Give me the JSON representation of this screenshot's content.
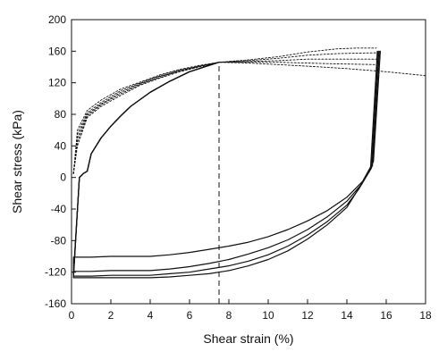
{
  "chart_data": {
    "type": "line",
    "xlabel": "Shear strain (%)",
    "ylabel": "Shear stress (kPa)",
    "xlim": [
      0,
      18
    ],
    "ylim": [
      -160,
      200
    ],
    "x_ticks": [
      "0",
      "2",
      "4",
      "6",
      "8",
      "10",
      "12",
      "14",
      "16",
      "18"
    ],
    "y_ticks": [
      "200",
      "160",
      "120",
      "80",
      "40",
      "0",
      "-40",
      "-80",
      "-120",
      "-160"
    ],
    "grid": false,
    "legend": "none",
    "series": [
      {
        "style": "dashed",
        "points": [
          [
            0.1,
            5
          ],
          [
            0.3,
            60
          ],
          [
            0.8,
            85
          ],
          [
            1.5,
            98
          ],
          [
            2.5,
            112
          ],
          [
            3.5,
            121
          ],
          [
            4.5,
            130
          ],
          [
            5.5,
            137
          ],
          [
            6.5,
            142
          ],
          [
            7.5,
            146
          ],
          [
            9,
            149
          ],
          [
            10.5,
            153
          ],
          [
            12,
            159
          ],
          [
            13.5,
            163
          ],
          [
            14.5,
            164
          ],
          [
            15.5,
            164
          ]
        ]
      },
      {
        "style": "dashed",
        "points": [
          [
            0.1,
            5
          ],
          [
            0.3,
            55
          ],
          [
            0.8,
            82
          ],
          [
            1.5,
            95
          ],
          [
            2.5,
            110
          ],
          [
            3.5,
            120
          ],
          [
            4.5,
            129
          ],
          [
            5.5,
            136
          ],
          [
            6.5,
            141
          ],
          [
            7.5,
            146
          ],
          [
            9,
            148
          ],
          [
            10.5,
            151
          ],
          [
            12,
            155
          ],
          [
            13.5,
            157
          ],
          [
            15.5,
            158
          ]
        ]
      },
      {
        "style": "dashed",
        "points": [
          [
            0.1,
            5
          ],
          [
            0.3,
            50
          ],
          [
            0.8,
            80
          ],
          [
            1.5,
            93
          ],
          [
            2.5,
            108
          ],
          [
            3.5,
            119
          ],
          [
            4.5,
            128
          ],
          [
            5.5,
            135
          ],
          [
            6.5,
            141
          ],
          [
            7.5,
            146
          ],
          [
            9,
            147
          ],
          [
            10.5,
            148
          ],
          [
            12,
            150
          ],
          [
            13.5,
            150
          ],
          [
            15.5,
            150
          ]
        ]
      },
      {
        "style": "dashed",
        "points": [
          [
            0.1,
            5
          ],
          [
            0.3,
            45
          ],
          [
            0.8,
            78
          ],
          [
            1.5,
            92
          ],
          [
            2.5,
            106
          ],
          [
            3.5,
            118
          ],
          [
            4.5,
            127
          ],
          [
            5.5,
            135
          ],
          [
            6.5,
            141
          ],
          [
            7.5,
            146
          ],
          [
            9,
            146
          ],
          [
            10.5,
            146
          ],
          [
            12,
            145
          ],
          [
            13.5,
            144
          ],
          [
            15.5,
            143
          ]
        ]
      },
      {
        "style": "dashed",
        "points": [
          [
            0.1,
            5
          ],
          [
            0.3,
            40
          ],
          [
            0.8,
            76
          ],
          [
            1.5,
            90
          ],
          [
            2.5,
            104
          ],
          [
            3.5,
            117
          ],
          [
            4.5,
            126
          ],
          [
            5.5,
            134
          ],
          [
            6.5,
            140
          ],
          [
            7.5,
            146
          ],
          [
            9,
            145
          ],
          [
            10.5,
            143
          ],
          [
            12,
            141
          ],
          [
            14,
            138
          ],
          [
            16,
            134
          ],
          [
            18,
            129
          ]
        ]
      },
      {
        "style": "solid",
        "points": [
          [
            15.7,
            160
          ],
          [
            15.35,
            20
          ],
          [
            14.8,
            -5
          ],
          [
            14,
            -25
          ],
          [
            13,
            -42
          ],
          [
            12,
            -55
          ],
          [
            11,
            -66
          ],
          [
            10,
            -75
          ],
          [
            9,
            -82
          ],
          [
            8,
            -87
          ],
          [
            7,
            -91
          ],
          [
            6,
            -95
          ],
          [
            5,
            -98
          ],
          [
            4,
            -100
          ],
          [
            3,
            -100
          ],
          [
            2,
            -100
          ],
          [
            1,
            -101
          ],
          [
            0.1,
            -101
          ],
          [
            0.1,
            -122
          ],
          [
            0.4,
            0
          ],
          [
            0.6,
            5
          ],
          [
            0.8,
            8
          ],
          [
            1.0,
            30
          ],
          [
            1.5,
            50
          ],
          [
            2,
            65
          ],
          [
            2.5,
            78
          ],
          [
            3,
            90
          ],
          [
            4,
            108
          ],
          [
            5,
            122
          ],
          [
            6,
            134
          ],
          [
            7,
            142
          ],
          [
            7.5,
            146
          ]
        ]
      },
      {
        "style": "solid",
        "points": [
          [
            15.65,
            160
          ],
          [
            15.3,
            15
          ],
          [
            14.7,
            -10
          ],
          [
            14,
            -30
          ],
          [
            13,
            -50
          ],
          [
            12,
            -66
          ],
          [
            11,
            -79
          ],
          [
            10,
            -89
          ],
          [
            9,
            -97
          ],
          [
            8,
            -104
          ],
          [
            7,
            -109
          ],
          [
            6,
            -113
          ],
          [
            5,
            -116
          ],
          [
            4,
            -118
          ],
          [
            3,
            -118
          ],
          [
            2,
            -118
          ],
          [
            1,
            -119
          ],
          [
            0.1,
            -119
          ],
          [
            0.1,
            -122
          ],
          [
            0.4,
            0
          ],
          [
            0.6,
            5
          ],
          [
            0.8,
            8
          ],
          [
            1.0,
            30
          ],
          [
            1.5,
            50
          ],
          [
            2,
            65
          ],
          [
            2.5,
            78
          ],
          [
            3,
            90
          ],
          [
            4,
            108
          ],
          [
            5,
            122
          ],
          [
            6,
            134
          ],
          [
            7,
            142
          ],
          [
            7.5,
            146
          ]
        ]
      },
      {
        "style": "solid",
        "points": [
          [
            15.6,
            160
          ],
          [
            15.25,
            12
          ],
          [
            14.6,
            -15
          ],
          [
            14,
            -35
          ],
          [
            13,
            -56
          ],
          [
            12,
            -73
          ],
          [
            11,
            -87
          ],
          [
            10,
            -98
          ],
          [
            9,
            -106
          ],
          [
            8,
            -112
          ],
          [
            7,
            -116
          ],
          [
            6,
            -120
          ],
          [
            5,
            -122
          ],
          [
            4,
            -124
          ],
          [
            3,
            -124
          ],
          [
            2,
            -124
          ],
          [
            1,
            -125
          ],
          [
            0.1,
            -125
          ],
          [
            0.4,
            0
          ],
          [
            0.6,
            5
          ],
          [
            0.8,
            8
          ],
          [
            1.0,
            30
          ],
          [
            1.5,
            50
          ],
          [
            2,
            65
          ],
          [
            2.5,
            78
          ],
          [
            3,
            90
          ],
          [
            4,
            108
          ],
          [
            5,
            122
          ],
          [
            6,
            134
          ],
          [
            7,
            142
          ],
          [
            7.5,
            146
          ]
        ]
      },
      {
        "style": "solid",
        "points": [
          [
            15.55,
            160
          ],
          [
            15.2,
            10
          ],
          [
            14.5,
            -18
          ],
          [
            14,
            -38
          ],
          [
            13,
            -60
          ],
          [
            12,
            -78
          ],
          [
            11,
            -93
          ],
          [
            10,
            -104
          ],
          [
            9,
            -112
          ],
          [
            8,
            -118
          ],
          [
            7,
            -122
          ],
          [
            6,
            -124
          ],
          [
            5,
            -126
          ],
          [
            4,
            -127
          ],
          [
            3,
            -127
          ],
          [
            2,
            -127
          ],
          [
            1,
            -127
          ],
          [
            0.1,
            -127
          ],
          [
            0.4,
            0
          ],
          [
            0.6,
            5
          ],
          [
            0.8,
            8
          ],
          [
            1.0,
            30
          ],
          [
            1.5,
            50
          ],
          [
            2,
            65
          ],
          [
            2.5,
            78
          ],
          [
            3,
            90
          ],
          [
            4,
            108
          ],
          [
            5,
            122
          ],
          [
            6,
            134
          ],
          [
            7,
            142
          ],
          [
            7.5,
            146
          ]
        ]
      }
    ],
    "reference_line": {
      "x": 7.5,
      "style": "dashed",
      "y_range": [
        -160,
        146
      ]
    }
  }
}
